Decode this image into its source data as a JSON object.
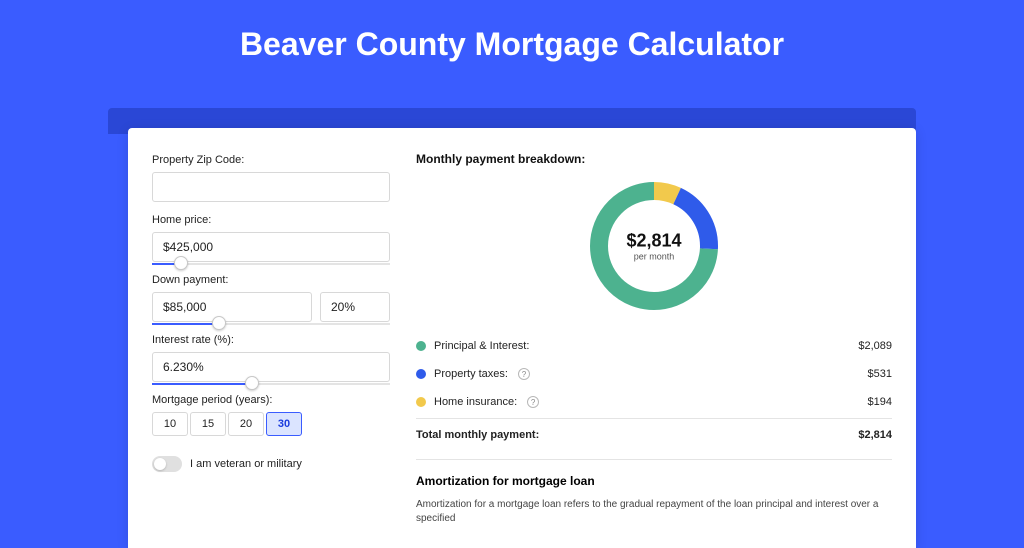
{
  "page": {
    "title": "Beaver County Mortgage Calculator"
  },
  "form": {
    "zip_label": "Property Zip Code:",
    "zip_value": "",
    "price_label": "Home price:",
    "price_value": "$425,000",
    "price_slider_pct": 12,
    "down_label": "Down payment:",
    "down_value": "$85,000",
    "down_pct": "20%",
    "down_slider_pct": 28,
    "rate_label": "Interest rate (%):",
    "rate_value": "6.230%",
    "rate_slider_pct": 42,
    "period_label": "Mortgage period (years):",
    "periods": [
      "10",
      "15",
      "20",
      "30"
    ],
    "period_selected": "30",
    "vet_label": "I am veteran or military"
  },
  "breakdown": {
    "title": "Monthly payment breakdown:",
    "center_value": "$2,814",
    "center_sub": "per month",
    "items": [
      {
        "label": "Principal & Interest:",
        "value": "$2,089",
        "color": "#4db28f",
        "pct": 74.2,
        "info": false
      },
      {
        "label": "Property taxes:",
        "value": "$531",
        "color": "#2f5bea",
        "pct": 18.9,
        "info": true
      },
      {
        "label": "Home insurance:",
        "value": "$194",
        "color": "#f2c94c",
        "pct": 6.9,
        "info": true
      }
    ],
    "total_label": "Total monthly payment:",
    "total_value": "$2,814",
    "donut": {
      "thickness": 18,
      "radius": 55
    }
  },
  "amort": {
    "title": "Amortization for mortgage loan",
    "text": "Amortization for a mortgage loan refers to the gradual repayment of the loan principal and interest over a specified"
  }
}
